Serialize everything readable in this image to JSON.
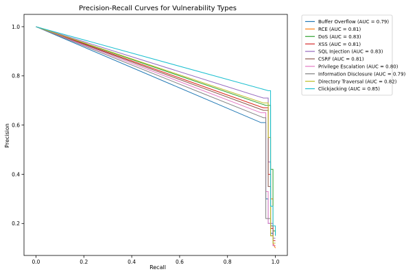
{
  "chart_data": {
    "type": "line",
    "title": "Precision-Recall Curves for Vulnerability Types",
    "xlabel": "Recall",
    "ylabel": "Precision",
    "xlim": [
      -0.05,
      1.05
    ],
    "ylim": [
      0.07,
      1.05
    ],
    "xticks": [
      0.0,
      0.2,
      0.4,
      0.6,
      0.8,
      1.0
    ],
    "xtick_labels": [
      "0.0",
      "0.2",
      "0.4",
      "0.6",
      "0.8",
      "1.0"
    ],
    "yticks": [
      0.2,
      0.4,
      0.6,
      0.8,
      1.0
    ],
    "ytick_labels": [
      "0.2",
      "0.4",
      "0.6",
      "0.8",
      "1.0"
    ],
    "grid": false,
    "legend_position": "outside-top-right",
    "series": [
      {
        "name": "Buffer Overflow (AUC = 0.79)",
        "color": "#1f77b4",
        "x": [
          0.0,
          0.94,
          0.94,
          0.96,
          0.96,
          0.97,
          0.97,
          0.98,
          0.98,
          0.99,
          0.99,
          1.0
        ],
        "y": [
          1.0,
          0.61,
          0.61,
          0.61,
          0.3,
          0.3,
          0.2,
          0.2,
          0.16,
          0.16,
          0.12,
          0.12
        ]
      },
      {
        "name": "RCE (AUC = 0.81)",
        "color": "#ff7f0e",
        "x": [
          0.0,
          0.95,
          0.95,
          0.97,
          0.97,
          0.98,
          0.98,
          0.99,
          0.99,
          1.0
        ],
        "y": [
          1.0,
          0.67,
          0.67,
          0.67,
          0.55,
          0.55,
          0.3,
          0.3,
          0.12,
          0.1
        ]
      },
      {
        "name": "DoS (AUC = 0.83)",
        "color": "#2ca02c",
        "x": [
          0.0,
          0.96,
          0.96,
          0.98,
          0.98,
          0.99,
          0.99,
          1.0,
          1.0
        ],
        "y": [
          1.0,
          0.68,
          0.68,
          0.68,
          0.42,
          0.42,
          0.17,
          0.17,
          0.15
        ]
      },
      {
        "name": "XSS (AUC = 0.81)",
        "color": "#d62728",
        "x": [
          0.0,
          0.95,
          0.95,
          0.97,
          0.97,
          0.98,
          0.98,
          0.99,
          0.99,
          1.0
        ],
        "y": [
          1.0,
          0.67,
          0.67,
          0.67,
          0.4,
          0.4,
          0.18,
          0.18,
          0.13,
          0.13
        ]
      },
      {
        "name": "SQL Injection (AUC = 0.83)",
        "color": "#9467bd",
        "x": [
          0.0,
          0.95,
          0.95,
          0.97,
          0.97,
          0.98,
          0.98,
          0.99,
          0.99,
          1.0
        ],
        "y": [
          1.0,
          0.71,
          0.71,
          0.71,
          0.45,
          0.45,
          0.2,
          0.2,
          0.14,
          0.14
        ]
      },
      {
        "name": "CSRF (AUC = 0.81)",
        "color": "#8c564b",
        "x": [
          0.0,
          0.95,
          0.95,
          0.97,
          0.97,
          0.98,
          0.98,
          0.99,
          0.99,
          1.0
        ],
        "y": [
          1.0,
          0.66,
          0.66,
          0.66,
          0.35,
          0.35,
          0.19,
          0.19,
          0.11,
          0.11
        ]
      },
      {
        "name": "Privilege Escalation (AUC = 0.80)",
        "color": "#e377c2",
        "x": [
          0.0,
          0.94,
          0.94,
          0.96,
          0.96,
          0.97,
          0.97,
          0.98,
          0.98,
          0.99,
          0.99,
          1.0
        ],
        "y": [
          1.0,
          0.65,
          0.65,
          0.65,
          0.33,
          0.33,
          0.2,
          0.2,
          0.15,
          0.15,
          0.11,
          0.11
        ]
      },
      {
        "name": "Information Disclosure (AUC = 0.79)",
        "color": "#7f7f7f",
        "x": [
          0.0,
          0.95,
          0.95,
          0.96,
          0.96,
          0.98,
          0.98,
          0.99,
          0.99,
          1.0
        ],
        "y": [
          1.0,
          0.63,
          0.63,
          0.63,
          0.22,
          0.22,
          0.15,
          0.15,
          0.12,
          0.12
        ]
      },
      {
        "name": "Directory Traversal (AUC = 0.82)",
        "color": "#bcbd22",
        "x": [
          0.0,
          0.95,
          0.95,
          0.97,
          0.97,
          0.98,
          0.98,
          0.99,
          0.99,
          1.0
        ],
        "y": [
          1.0,
          0.69,
          0.69,
          0.69,
          0.55,
          0.55,
          0.15,
          0.15,
          0.12,
          0.12
        ]
      },
      {
        "name": "Clickjacking (AUC = 0.85)",
        "color": "#17becf",
        "x": [
          0.0,
          0.97,
          0.97,
          0.98,
          0.98,
          0.99,
          0.99,
          1.0,
          1.0
        ],
        "y": [
          1.0,
          0.74,
          0.74,
          0.74,
          0.27,
          0.27,
          0.19,
          0.19,
          0.15
        ]
      }
    ]
  }
}
